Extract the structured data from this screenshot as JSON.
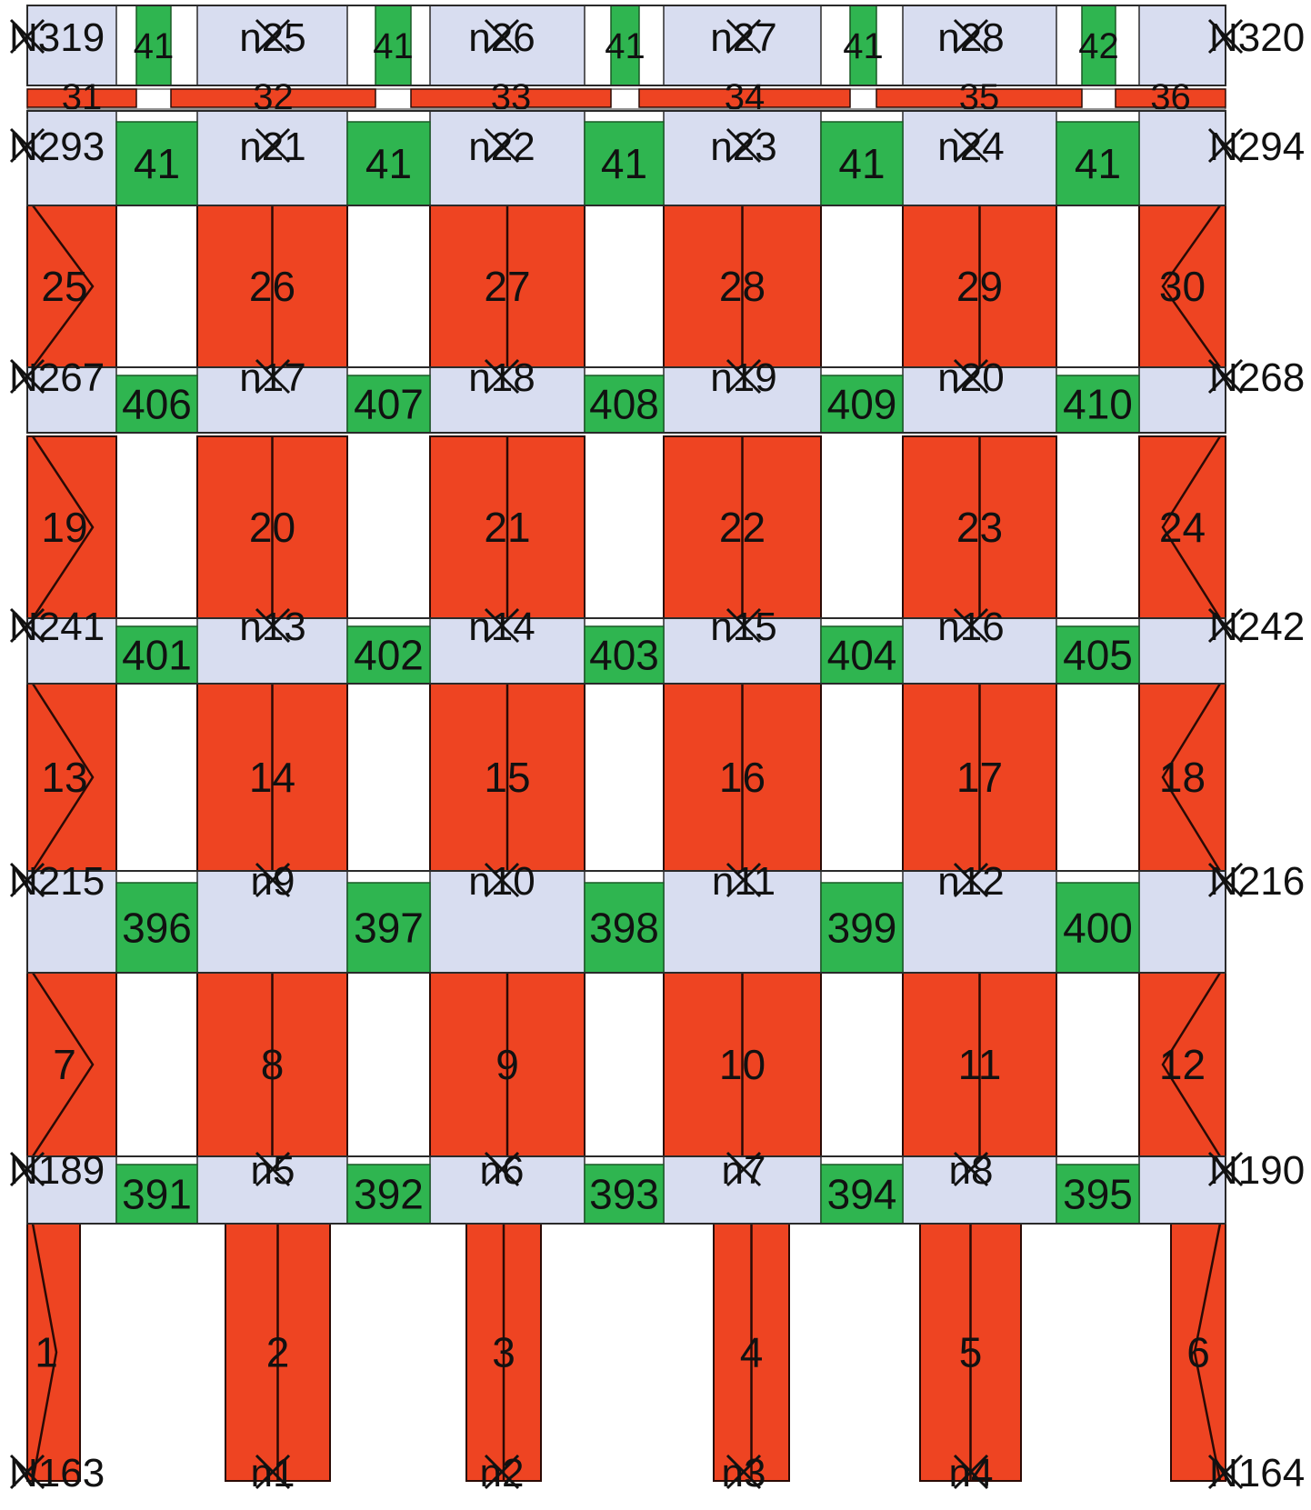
{
  "colors": {
    "column": "#ee4422",
    "column_stroke": "#2a0a05",
    "joint": "#d8ddf0",
    "beam": "#2fb550",
    "beam_stroke": "#1a5a26",
    "outline": "#2a2a2a",
    "marker": "#111111",
    "background": "#ffffff"
  },
  "storey_labels": {
    "s1": [
      "1",
      "2",
      "3",
      "4",
      "5",
      "6"
    ],
    "s2": [
      "7",
      "8",
      "9",
      "10",
      "11",
      "12"
    ],
    "s3": [
      "13",
      "14",
      "15",
      "16",
      "17",
      "18"
    ],
    "s4": [
      "19",
      "20",
      "21",
      "22",
      "23",
      "24"
    ],
    "s5": [
      "25",
      "26",
      "27",
      "28",
      "29",
      "30"
    ],
    "top_columns": [
      "31",
      "32",
      "33",
      "34",
      "35",
      "36"
    ]
  },
  "beam_labels": {
    "level1": [
      "391",
      "392",
      "393",
      "394",
      "395"
    ],
    "level2": [
      "396",
      "397",
      "398",
      "399",
      "400"
    ],
    "level3": [
      "401",
      "402",
      "403",
      "404",
      "405"
    ],
    "level4": [
      "406",
      "407",
      "408",
      "409",
      "410"
    ],
    "level5": [
      "41",
      "41",
      "41",
      "41",
      "41"
    ],
    "level6": [
      "41",
      "41",
      "41",
      "41",
      "42"
    ]
  },
  "node_labels": {
    "base": [
      "N163",
      "n1",
      "n2",
      "n3",
      "n4",
      "N164"
    ],
    "level1": [
      "N189",
      "n5",
      "n6",
      "n7",
      "n8",
      "N190"
    ],
    "level2": [
      "N215",
      "n9",
      "n10",
      "n11",
      "n12",
      "N216"
    ],
    "level3": [
      "N241",
      "n13",
      "n14",
      "n15",
      "n16",
      "N242"
    ],
    "level4": [
      "N267",
      "n17",
      "n18",
      "n19",
      "n20",
      "N268"
    ],
    "level5": [
      "N293",
      "n21",
      "n22",
      "n23",
      "n24",
      "N294"
    ],
    "level6": [
      "N319",
      "n25",
      "n26",
      "n27",
      "n28",
      "N320"
    ]
  }
}
